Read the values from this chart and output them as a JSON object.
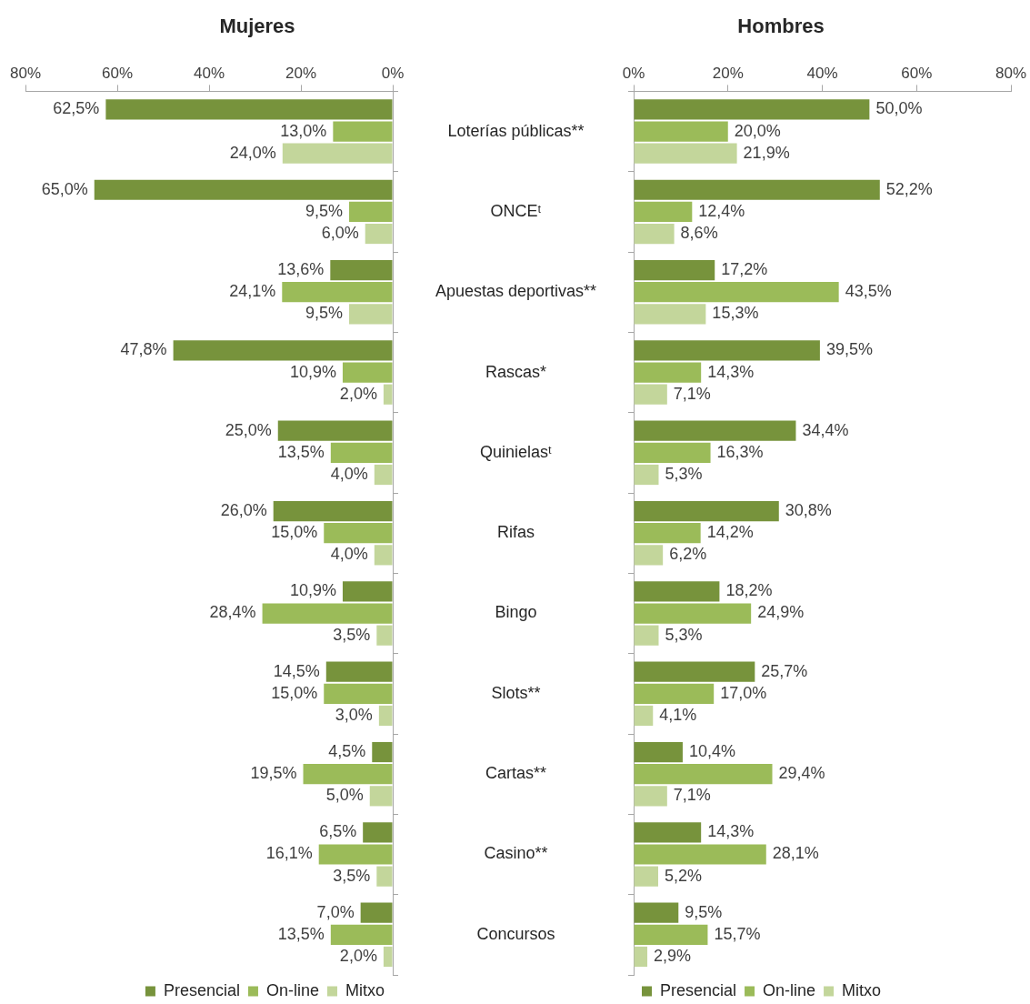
{
  "chart_data": [
    {
      "type": "bar",
      "title": "Mujeres",
      "orientation": "horizontal",
      "legend": "bottom",
      "categories": [
        null,
        null,
        null,
        null,
        null,
        null,
        null,
        null,
        null,
        null,
        null
      ],
      "xlim": [
        80,
        0
      ],
      "xticks": [
        {
          "value": 80,
          "label": "80%"
        },
        {
          "value": 60,
          "label": "60%"
        },
        {
          "value": 40,
          "label": "40%"
        },
        {
          "value": 20,
          "label": "20%"
        },
        {
          "value": 0,
          "label": "0%"
        }
      ],
      "series": [
        {
          "name": "Presencial",
          "color": "#77933c",
          "values": [
            62.5,
            65.0,
            13.6,
            47.8,
            25.0,
            26.0,
            10.9,
            14.5,
            4.5,
            6.5,
            7.0
          ],
          "value_labels": [
            "62,5%",
            "65,0%",
            "13,6%",
            "47,8%",
            "25,0%",
            "26,0%",
            "10,9%",
            "14,5%",
            "4,5%",
            "6,5%",
            "7,0%"
          ]
        },
        {
          "name": "On-line",
          "color": "#9bbb59",
          "values": [
            13.0,
            9.5,
            24.1,
            10.9,
            13.5,
            15.0,
            28.4,
            15.0,
            19.5,
            16.1,
            13.5
          ],
          "value_labels": [
            "13,0%",
            "9,5%",
            "24,1%",
            "10,9%",
            "13,5%",
            "15,0%",
            "28,4%",
            "15,0%",
            "19,5%",
            "16,1%",
            "13,5%"
          ]
        },
        {
          "name": "Mitxo",
          "color": "#c3d69b",
          "values": [
            24.0,
            6.0,
            9.5,
            2.0,
            4.0,
            4.0,
            3.5,
            3.0,
            5.0,
            3.5,
            2.0
          ],
          "value_labels": [
            "24,0%",
            "6,0%",
            "9,5%",
            "2,0%",
            "4,0%",
            "4,0%",
            "3,5%",
            "3,0%",
            "5,0%",
            "3,5%",
            "2,0%"
          ]
        }
      ]
    },
    {
      "type": "bar",
      "title": "Hombres",
      "orientation": "horizontal",
      "legend": "bottom",
      "categories": [
        "Loterías públicas**",
        "ONCEᵗ",
        "Apuestas deportivas**",
        "Rascas*",
        "Quinielasᵗ",
        "Rifas",
        "Bingo",
        "Slots**",
        "Cartas**",
        "Casino**",
        "Concursos"
      ],
      "xlim": [
        0,
        80
      ],
      "xticks": [
        {
          "value": 0,
          "label": "0%"
        },
        {
          "value": 20,
          "label": "20%"
        },
        {
          "value": 40,
          "label": "40%"
        },
        {
          "value": 60,
          "label": "60%"
        },
        {
          "value": 80,
          "label": "80%"
        }
      ],
      "series": [
        {
          "name": "Presencial",
          "color": "#77933c",
          "values": [
            50.0,
            52.2,
            17.2,
            39.5,
            34.4,
            30.8,
            18.2,
            25.7,
            10.4,
            14.3,
            9.5
          ],
          "value_labels": [
            "50,0%",
            "52,2%",
            "17,2%",
            "39,5%",
            "34,4%",
            "30,8%",
            "18,2%",
            "25,7%",
            "10,4%",
            "14,3%",
            "9,5%"
          ]
        },
        {
          "name": "On-line",
          "color": "#9bbb59",
          "values": [
            20.0,
            12.4,
            43.5,
            14.3,
            16.3,
            14.2,
            24.9,
            17.0,
            29.4,
            28.1,
            15.7
          ],
          "value_labels": [
            "20,0%",
            "12,4%",
            "43,5%",
            "14,3%",
            "16,3%",
            "14,2%",
            "24,9%",
            "17,0%",
            "29,4%",
            "28,1%",
            "15,7%"
          ]
        },
        {
          "name": "Mitxo",
          "color": "#c3d69b",
          "values": [
            21.9,
            8.6,
            15.3,
            7.1,
            5.3,
            6.2,
            5.3,
            4.1,
            7.1,
            5.2,
            2.9
          ],
          "value_labels": [
            "21,9%",
            "8,6%",
            "15,3%",
            "7,1%",
            "5,3%",
            "6,2%",
            "5,3%",
            "4,1%",
            "7,1%",
            "5,2%",
            "2,9%"
          ]
        }
      ]
    }
  ]
}
